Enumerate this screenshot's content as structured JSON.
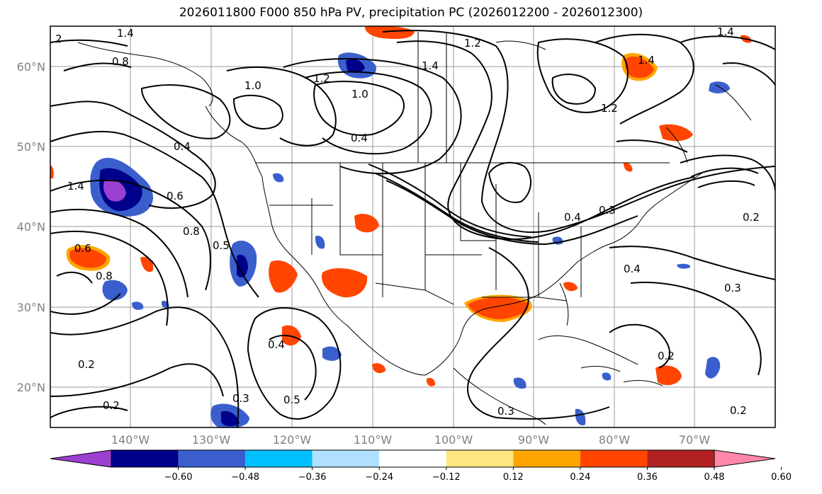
{
  "title": "2026011800 F000 850 hPa PV, precipitation PC (2026012200 - 2026012300)",
  "map": {
    "lat_ticks": [
      "20°N",
      "30°N",
      "40°N",
      "50°N",
      "60°N"
    ],
    "lon_ticks": [
      "140°W",
      "130°W",
      "120°W",
      "110°W",
      "100°W",
      "90°W",
      "80°W",
      "70°W"
    ],
    "contour_labels": [
      "2",
      "1.4",
      "0.8",
      "1.0",
      "1.2",
      "1.0",
      "1.2",
      "1.4",
      "1.4",
      "1.4",
      "1.2",
      "0.4",
      "0.4",
      "0.6",
      "0.8",
      "0.5",
      "1.4",
      "0.6",
      "0.8",
      "0.4",
      "0.4",
      "0.5",
      "0.4",
      "0.3",
      "0.2",
      "0.2",
      "0.3",
      "0.3",
      "0.2",
      "0.3",
      "0.2",
      "0.2"
    ]
  },
  "colorbar": {
    "labels": [
      "−0.60",
      "−0.48",
      "−0.36",
      "−0.24",
      "−0.12",
      "0.12",
      "0.24",
      "0.36",
      "0.48",
      "0.60"
    ],
    "colors": [
      "#9b3fd1",
      "#00008b",
      "#3a5fcd",
      "#00bfff",
      "#b0e0ff",
      "#ffffff",
      "#ffe680",
      "#ffa500",
      "#ff4500",
      "#b22222",
      "#ff88aa"
    ]
  }
}
